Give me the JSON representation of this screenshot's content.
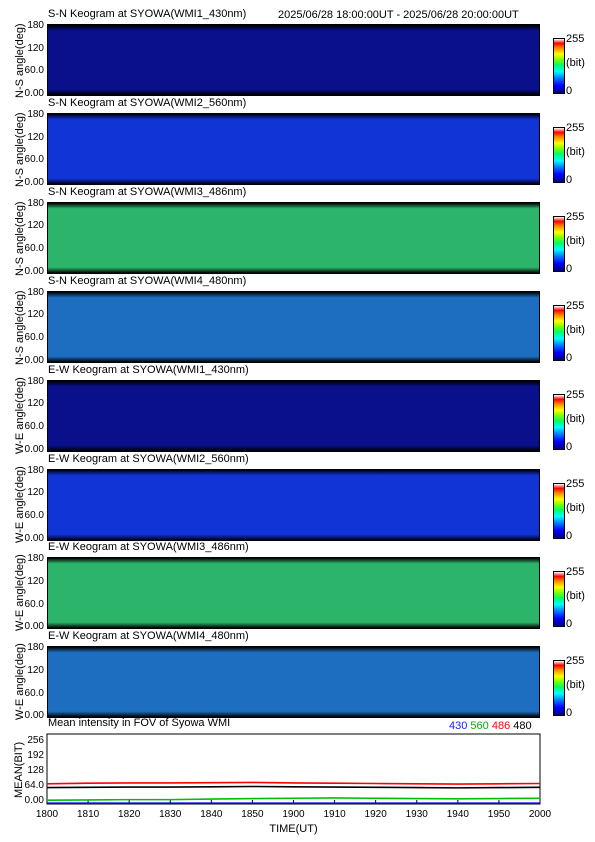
{
  "header": {
    "date_range": "2025/06/28 18:00:00UT - 2025/06/28 20:00:00UT"
  },
  "keograms": [
    {
      "title": "S-N Keogram at SYOWA(WMI1_430nm)",
      "ylabel": "N-S angle(deg)",
      "tone": "dark"
    },
    {
      "title": "S-N Keogram at SYOWA(WMI2_560nm)",
      "ylabel": "N-S angle(deg)",
      "tone": "blue"
    },
    {
      "title": "S-N Keogram at SYOWA(WMI3_486nm)",
      "ylabel": "N-S angle(deg)",
      "tone": "green"
    },
    {
      "title": "S-N Keogram at SYOWA(WMI4_480nm)",
      "ylabel": "N-S angle(deg)",
      "tone": "teal"
    },
    {
      "title": "E-W Keogram at SYOWA(WMI1_430nm)",
      "ylabel": "W-E angle(deg)",
      "tone": "dark"
    },
    {
      "title": "E-W Keogram at SYOWA(WMI2_560nm)",
      "ylabel": "W-E angle(deg)",
      "tone": "blue"
    },
    {
      "title": "E-W Keogram at SYOWA(WMI3_486nm)",
      "ylabel": "W-E angle(deg)",
      "tone": "green"
    },
    {
      "title": "E-W Keogram at SYOWA(WMI4_480nm)",
      "ylabel": "W-E angle(deg)",
      "tone": "teal"
    }
  ],
  "angle_ticks": [
    "180",
    "120",
    "60.0",
    "0.00"
  ],
  "colorbar": {
    "max": "255",
    "unit": "(bit)",
    "min": "0"
  },
  "tone_colors": {
    "dark": {
      "base": "#0a0f8c",
      "top": "#000000"
    },
    "blue": {
      "base": "#1034d6",
      "top": "#00001a"
    },
    "green": {
      "base": "#2cb46a",
      "top": "#000000"
    },
    "teal": {
      "base": "#1d6ec0",
      "top": "#000000"
    }
  },
  "chart_data": {
    "type": "line",
    "title": "Mean intensity in FOV of Syowa WMI",
    "xlabel": "TIME(UT)",
    "ylabel": "MEAN(BIT)",
    "x_ticks": [
      "1800",
      "1810",
      "1820",
      "1830",
      "1840",
      "1850",
      "1900",
      "1910",
      "1920",
      "1930",
      "1940",
      "1950",
      "2000"
    ],
    "y_ticks": [
      "256",
      "192",
      "128",
      "64.0",
      "0.00"
    ],
    "ylim": [
      0,
      256
    ],
    "x": [
      0,
      10,
      20,
      30,
      40,
      50,
      60,
      70,
      80,
      90,
      100,
      110,
      120
    ],
    "series": [
      {
        "name": "430",
        "color": "#0000ff",
        "values": [
          3,
          3,
          3,
          3,
          3,
          3,
          3,
          3,
          3,
          3,
          3,
          3,
          3
        ]
      },
      {
        "name": "560",
        "color": "#00c000",
        "values": [
          14,
          15,
          16,
          16,
          18,
          20,
          21,
          22,
          21,
          20,
          19,
          20,
          21
        ]
      },
      {
        "name": "486",
        "color": "#ff0000",
        "values": [
          74,
          76,
          77,
          77,
          78,
          79,
          77,
          76,
          75,
          74,
          73,
          74,
          75
        ]
      },
      {
        "name": "480",
        "color": "#000000",
        "values": [
          60,
          61,
          62,
          62,
          63,
          64,
          63,
          62,
          61,
          60,
          59,
          60,
          61
        ]
      }
    ]
  }
}
